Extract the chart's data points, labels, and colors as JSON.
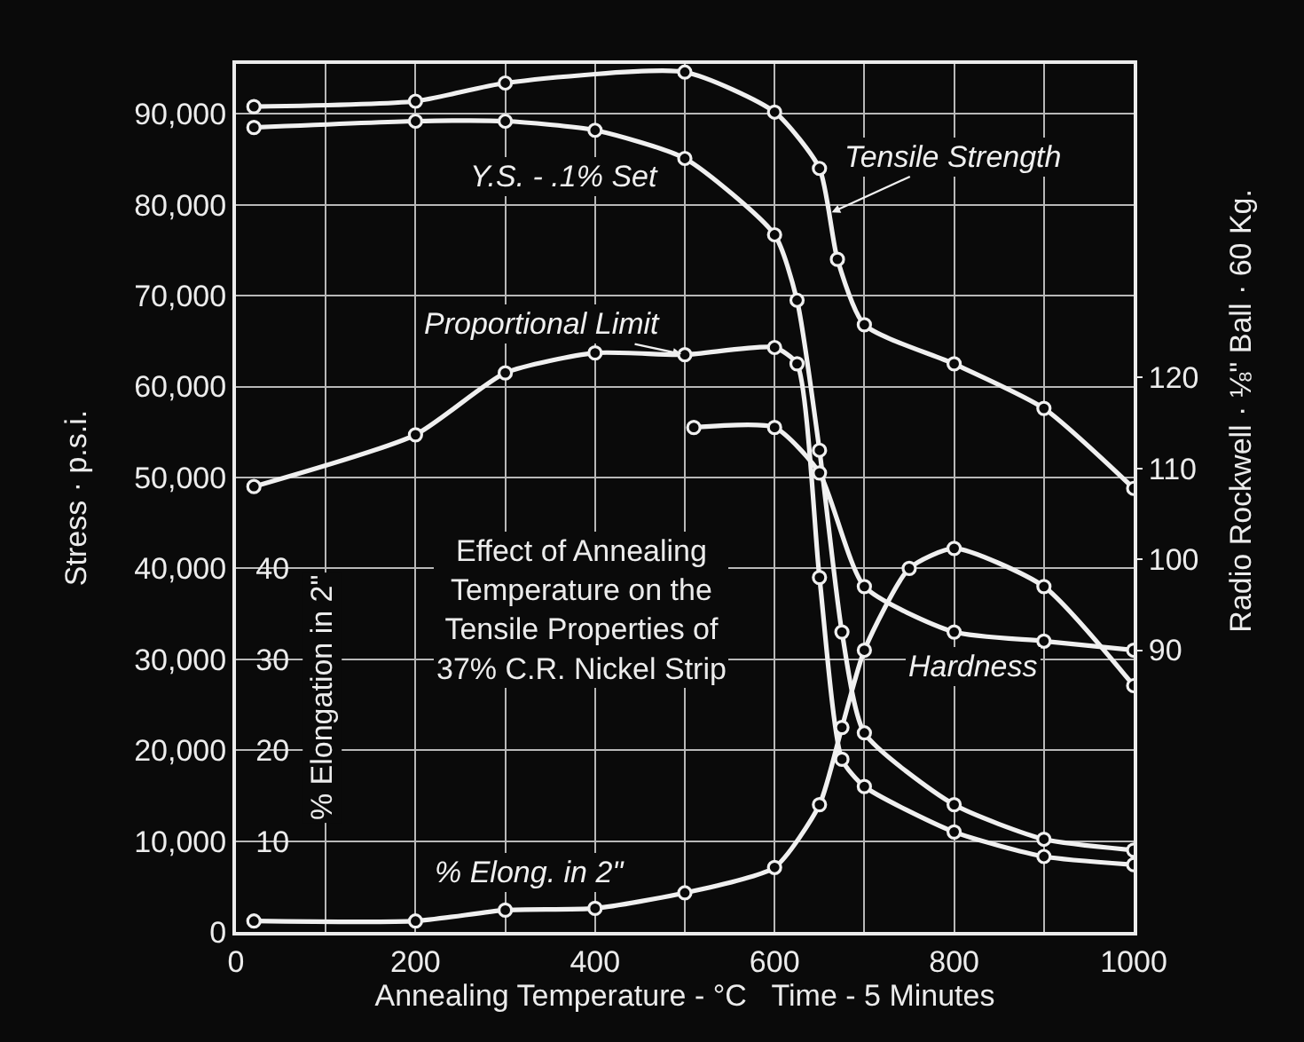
{
  "chart_data": {
    "type": "line",
    "title": "Effect of Annealing\nTemperature on the\nTensile Properties of\n37% C.R. Nickel Strip",
    "xlabel": "Annealing Temperature - °C   Time - 5 Minutes",
    "ylabel": "Stress · p.s.i.",
    "y2label": "% Elongation in 2\"",
    "y3label": "Radio Rockwell · ⅛\" Ball · 60 Kg.",
    "xlim": [
      0,
      1000
    ],
    "xticks": [
      0,
      {
        "value": 100,
        "label": null
      },
      200,
      {
        "value": 300,
        "label": null
      },
      400,
      {
        "value": 500,
        "label": null
      },
      600,
      {
        "value": 700,
        "label": null
      },
      800,
      {
        "value": 900,
        "label": null
      },
      1000
    ],
    "ylim": [
      0,
      95500
    ],
    "yticks": [
      0,
      {
        "value": 10000,
        "label": "10,000"
      },
      {
        "value": 20000,
        "label": "20,000"
      },
      {
        "value": 30000,
        "label": "30,000"
      },
      {
        "value": 40000,
        "label": "40,000"
      },
      {
        "value": 50000,
        "label": "50,000"
      },
      {
        "value": 60000,
        "label": "60,000"
      },
      {
        "value": 70000,
        "label": "70,000"
      },
      {
        "value": 80000,
        "label": "80,000"
      },
      {
        "value": 90000,
        "label": "90,000"
      }
    ],
    "y2lim": [
      0,
      95.5
    ],
    "y2ticks": [
      10,
      20,
      30,
      40
    ],
    "y3lim": [
      59,
      154.5
    ],
    "y3ticks": [
      90,
      100,
      110,
      120
    ],
    "grid": true,
    "marker": "circle",
    "line_style": "solid",
    "series": [
      {
        "name": "Tensile Strength",
        "color": "#f0f0f0",
        "x": [
          20,
          200,
          300,
          500,
          600,
          650,
          670,
          700,
          800,
          900,
          1000
        ],
        "values": [
          90800,
          91400,
          93400,
          94600,
          90200,
          84000,
          74000,
          66800,
          62500,
          57600,
          48800
        ]
      },
      {
        "name": "Y.S. - .1% Set",
        "color": "#f0f0f0",
        "x": [
          20,
          200,
          300,
          400,
          500,
          600,
          625,
          650,
          675,
          700,
          800,
          900,
          1000
        ],
        "values": [
          88500,
          89200,
          89200,
          88200,
          85100,
          76700,
          69500,
          53000,
          33000,
          21900,
          14000,
          10200,
          9000
        ]
      },
      {
        "name": "Proportional Limit",
        "color": "#f0f0f0",
        "x": [
          20,
          200,
          300,
          400,
          500,
          600,
          625,
          650,
          675,
          700,
          800,
          900,
          1000
        ],
        "values": [
          49000,
          54700,
          61500,
          63700,
          63500,
          64300,
          62500,
          39000,
          19000,
          16000,
          11000,
          8300,
          7400
        ]
      },
      {
        "name": "% Elong. in 2\"",
        "color": "#f0f0f0",
        "axis": "y2",
        "x": [
          20,
          200,
          300,
          400,
          500,
          600,
          650,
          675,
          700,
          750,
          800,
          900,
          1000
        ],
        "values": [
          1.2,
          1.2,
          2.4,
          2.6,
          4.3,
          7.1,
          14,
          22.5,
          31,
          40,
          42.2,
          38,
          27.1
        ]
      },
      {
        "name": "Hardness",
        "color": "#f0f0f0",
        "axis": "y3",
        "x": [
          510,
          600,
          650,
          700,
          800,
          900,
          1000
        ],
        "values": [
          114.5,
          114.5,
          109.5,
          97,
          92,
          91,
          90
        ]
      }
    ]
  }
}
